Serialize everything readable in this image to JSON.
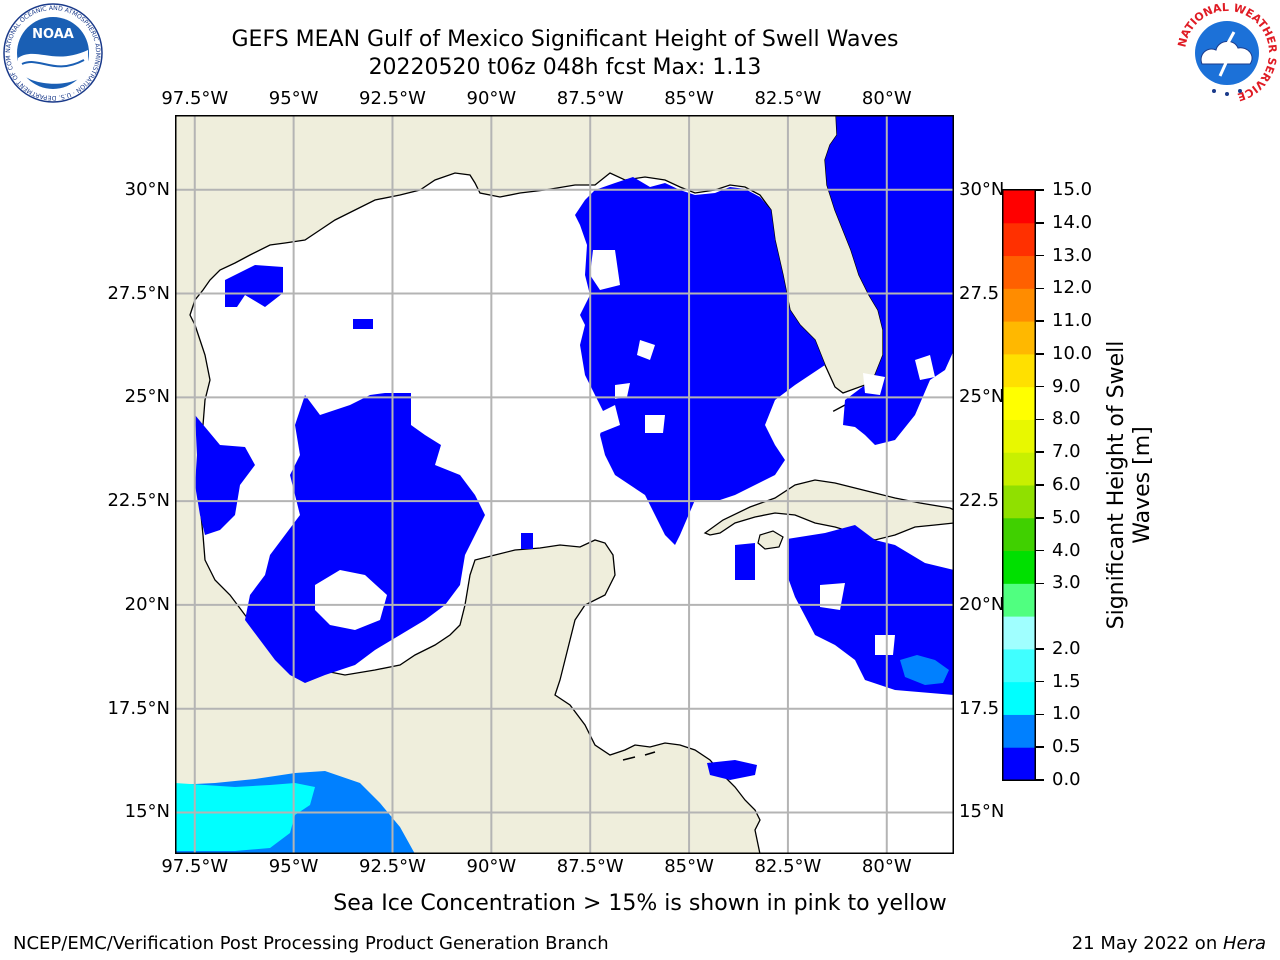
{
  "title": {
    "line1": "GEFS MEAN Gulf of Mexico Significant Height of Swell Waves",
    "line2": "20220520 t06z 048h fcst   Max: 1.13"
  },
  "map": {
    "lon_range": [
      -98,
      -78.3
    ],
    "lat_range": [
      14.0,
      31.8
    ],
    "grid": true,
    "lon_ticks": [
      {
        "value": -97.5,
        "label": "97.5°W"
      },
      {
        "value": -95.0,
        "label": "95°W"
      },
      {
        "value": -92.5,
        "label": "92.5°W"
      },
      {
        "value": -90.0,
        "label": "90°W"
      },
      {
        "value": -87.5,
        "label": "87.5°W"
      },
      {
        "value": -85.0,
        "label": "85°W"
      },
      {
        "value": -82.5,
        "label": "82.5°W"
      },
      {
        "value": -80.0,
        "label": "80°W"
      }
    ],
    "lat_ticks": [
      {
        "value": 30.0,
        "left": "30°N",
        "right": "30°N"
      },
      {
        "value": 27.5,
        "left": "27.5°N",
        "right": "27.5"
      },
      {
        "value": 25.0,
        "left": "25°N",
        "right": "25°N"
      },
      {
        "value": 22.5,
        "left": "22.5°N",
        "right": "22.5"
      },
      {
        "value": 20.0,
        "left": "20°N",
        "right": "20°N"
      },
      {
        "value": 17.5,
        "left": "17.5°N",
        "right": "17.5"
      },
      {
        "value": 15.0,
        "left": "15°N",
        "right": "15°N"
      }
    ],
    "colors": {
      "ocean": "#ffffff",
      "land": "#efeedc",
      "coast": "#000000",
      "grid": "#b4b4b4",
      "swell_low": "#0000ff",
      "swell_mid": "#0080ff",
      "swell_high": "#00ffff"
    }
  },
  "colorbar": {
    "label": "Significant Height of Swell Waves [m]",
    "label_line1": "Significant Height of Swell",
    "label_line2": "Waves [m]",
    "levels": [
      "0.0",
      "0.5",
      "1.0",
      "1.5",
      "2.0",
      "2.5",
      "3.0",
      "4.0",
      "5.0",
      "6.0",
      "7.0",
      "8.0",
      "9.0",
      "10.0",
      "11.0",
      "12.0",
      "13.0",
      "14.0",
      "15.0"
    ],
    "tick_labels": [
      "0.0",
      "0.5",
      "1.0",
      "1.5",
      "2.0",
      "3.0",
      "4.0",
      "5.0",
      "6.0",
      "7.0",
      "8.0",
      "9.0",
      "10.0",
      "11.0",
      "12.0",
      "13.0",
      "14.0",
      "15.0"
    ],
    "colors": [
      "#0000ff",
      "#0080ff",
      "#00ffff",
      "#40ffff",
      "#a0ffff",
      "#50ff80",
      "#00e000",
      "#40d000",
      "#90e000",
      "#c8f000",
      "#e8f800",
      "#ffff00",
      "#ffe000",
      "#ffb800",
      "#ff8c00",
      "#ff6000",
      "#ff3000",
      "#ff0000"
    ]
  },
  "logos": {
    "noaa": "NOAA",
    "noaa_ring": "NATIONAL OCEANIC AND ATMOSPHERIC ADMINISTRATION · U.S. DEPARTMENT OF COMMERCE",
    "nws_ring": "NATIONAL WEATHER SERVICE"
  },
  "sea_ice_note": "Sea Ice Concentration > 15% is shown in pink to yellow",
  "footer": {
    "left": "NCEP/EMC/Verification Post Processing Product Generation Branch",
    "date": "21 May 2022 on ",
    "host": "Hera"
  }
}
